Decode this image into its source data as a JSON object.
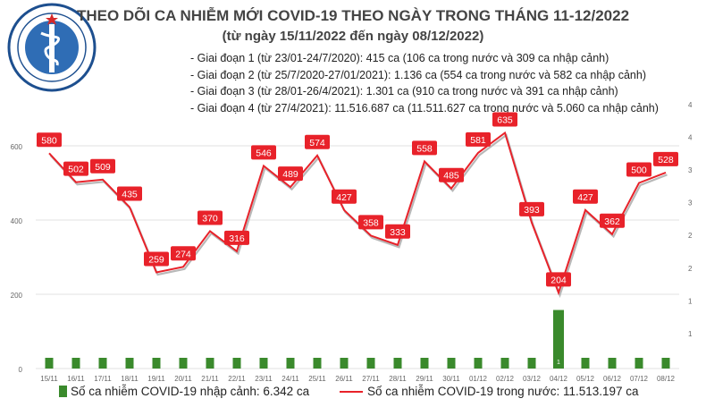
{
  "header": {
    "logo_text_top": "BỘ Y TẾ",
    "logo_text_bottom": "MINISTRY OF HEALTH",
    "title": "THEO DÕI CA NHIỄM MỚI COVID-19 THEO NGÀY TRONG THÁNG 11-12/2022",
    "subtitle": "(từ ngày 15/11/2022 đến ngày 08/12/2022)"
  },
  "notes": [
    "- Giai đoạn 1 (từ 23/01-24/7/2020): 415 ca (106 ca trong nước và 309 ca nhập cảnh)",
    "- Giai đoạn 2 (từ 25/7/2020-27/01/2021): 1.136 ca (554 ca trong nước và 582 ca nhập cảnh)",
    "- Giai đoạn 3 (từ 28/01-26/4/2021): 1.301 ca (910 ca trong nước và 391 ca nhập cảnh)",
    "- Giai đoạn 4 (từ 27/4/2021): 11.516.687 ca (11.511.627 ca trong nước và 5.060 ca nhập cảnh)"
  ],
  "legend": {
    "bar_label": "Số ca nhiễm COVID-19 nhập cảnh: 6.342 ca",
    "line_label": "Số ca nhiễm COVID-19 trong nước: 11.513.197 ca"
  },
  "colors": {
    "bar": "#3a8a2c",
    "line": "#e8222a",
    "grid": "#e2e2e2",
    "axis_text": "#666666",
    "label_text": "#ffffff"
  },
  "chart_data": {
    "type": "bar+line",
    "categories": [
      "15/11",
      "16/11",
      "17/11",
      "18/11",
      "19/11",
      "20/11",
      "21/11",
      "22/11",
      "23/11",
      "24/11",
      "25/11",
      "26/11",
      "27/11",
      "28/11",
      "29/11",
      "30/11",
      "01/12",
      "02/12",
      "03/12",
      "04/12",
      "05/12",
      "06/12",
      "07/12",
      "08/12"
    ],
    "series": [
      {
        "name": "Số ca nhiễm COVID-19 nhập cảnh: 6.342 ca",
        "type": "bar",
        "axis": "right",
        "values": [
          0,
          0,
          0,
          0,
          0,
          0,
          0,
          0,
          0,
          0,
          0,
          0,
          0,
          0,
          0,
          0,
          0,
          0,
          0,
          1,
          0,
          0,
          0,
          0
        ],
        "data_labels": [
          "",
          "",
          "",
          "",
          "",
          "",
          "",
          "",
          "",
          "",
          "",
          "",
          "",
          "",
          "",
          "",
          "",
          "",
          "",
          "1",
          "",
          "",
          "",
          ""
        ]
      },
      {
        "name": "Số ca nhiễm COVID-19 trong nước: 11.513.197 ca",
        "type": "line",
        "axis": "left",
        "values": [
          580,
          502,
          509,
          435,
          259,
          274,
          370,
          316,
          546,
          489,
          574,
          427,
          358,
          333,
          558,
          485,
          581,
          635,
          393,
          204,
          427,
          362,
          500,
          528
        ]
      }
    ],
    "y_left": {
      "ticks": [
        "0",
        "200",
        "400",
        "600"
      ]
    },
    "y_right": {
      "ticks": [
        "1",
        "1",
        "2",
        "2",
        "3",
        "3",
        "4",
        "4"
      ]
    },
    "grid": true,
    "legend_position": "bottom"
  }
}
